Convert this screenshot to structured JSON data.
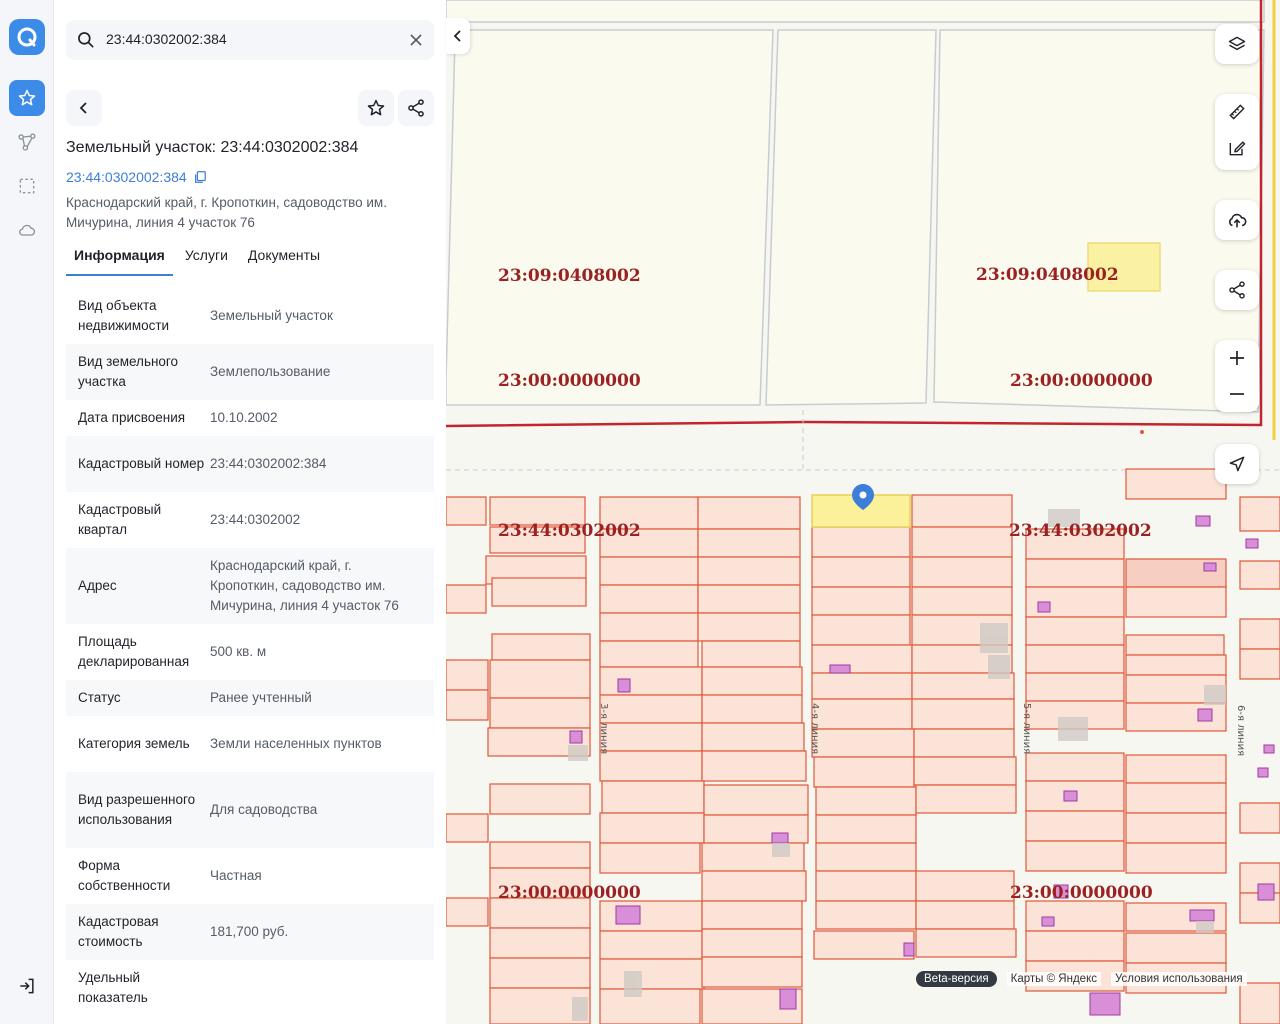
{
  "search": {
    "value": "23:44:0302002:384"
  },
  "object": {
    "title": "Земельный участок: 23:44:0302002:384",
    "cadastral_link": "23:44:0302002:384",
    "address": "Краснодарский край, г. Кропоткин, садоводство им. Мичурина, линия 4 участок 76"
  },
  "tabs": [
    {
      "label": "Информация"
    },
    {
      "label": "Услуги"
    },
    {
      "label": "Документы"
    }
  ],
  "info_rows": [
    {
      "key": "Вид объекта недвижимости",
      "value": "Земельный участок"
    },
    {
      "key": "Вид земельного участка",
      "value": "Землепользование"
    },
    {
      "key": "Дата присвоения",
      "value": "10.10.2002"
    },
    {
      "key": "Кадастровый номер",
      "value": "23:44:0302002:384"
    },
    {
      "key": "Кадастровый квартал",
      "value": "23:44:0302002"
    },
    {
      "key": "Адрес",
      "value": "Краснодарский край, г. Кропоткин, садоводство им. Мичурина, линия 4 участок 76"
    },
    {
      "key": "Площадь декларированная",
      "value": "500 кв. м"
    },
    {
      "key": "Статус",
      "value": "Ранее учтенный"
    },
    {
      "key": "Категория земель",
      "value": "Земли населенных пунктов"
    },
    {
      "key": "Вид разрешенного использования",
      "value": "Для садоводства"
    },
    {
      "key": "Форма собственности",
      "value": "Частная"
    },
    {
      "key": "Кадастровая стоимость",
      "value": "181,700 руб."
    },
    {
      "key": "Удельный показатель",
      "value": ""
    }
  ],
  "map": {
    "labels": [
      "23:09:0408002",
      "23:09:0408002",
      "23:00:0000000",
      "23:00:0000000",
      "23:44:0302002",
      "23:44:0302002",
      "23:00:0000000",
      "23:00:0000000"
    ],
    "street_labels": [
      "3-я линия",
      "4-я линия",
      "5-я линия",
      "6-я линия"
    ],
    "footer": {
      "beta": "Beta-версия",
      "maps": "Карты © Яндекс",
      "terms": "Условия использования"
    }
  },
  "colors": {
    "accent": "#3d8be8",
    "parcel_fill": "#fbe3d8",
    "parcel_stroke": "#e0583a",
    "selected_fill": "#fbf19a",
    "boundary_red": "#c0262b",
    "building_fill": "#d88fd8"
  }
}
